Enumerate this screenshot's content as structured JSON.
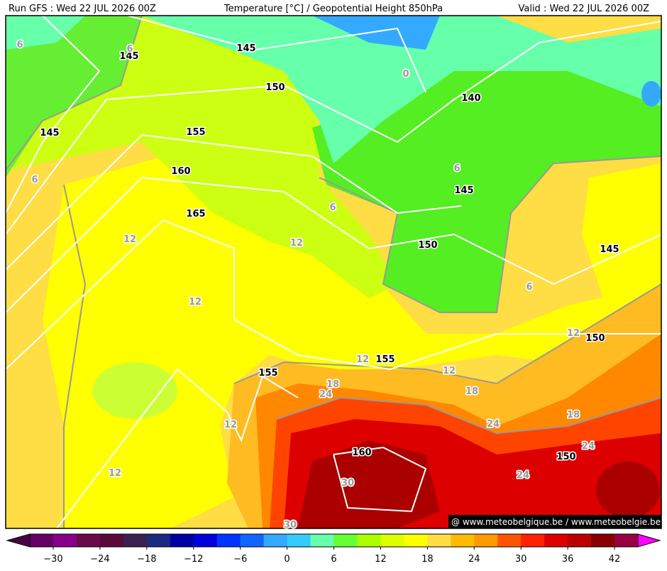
{
  "header": {
    "run": "Run GFS : Wed 22 JUL 2026 00Z",
    "title": "Temperature [°C] / Geopotential Height 850hPa",
    "valid": "Valid : Wed 22 JUL 2026 00Z"
  },
  "height_labels": [
    "145",
    "145",
    "150",
    "145",
    "155",
    "160",
    "165",
    "140",
    "145",
    "150",
    "145",
    "150",
    "155",
    "155",
    "160",
    "150"
  ],
  "temperature_labels": [
    "6",
    "6",
    "0",
    "6",
    "6",
    "6",
    "12",
    "12",
    "12",
    "6",
    "12",
    "12",
    "12",
    "12",
    "12",
    "18",
    "24",
    "18",
    "18",
    "24",
    "24",
    "24",
    "30",
    "30"
  ],
  "watermark": "@ www.meteobelgique.be / www.meteobelgie.be",
  "colorbar": {
    "labels": [
      "−30",
      "−24",
      "−18",
      "−12",
      "−6",
      "0",
      "6",
      "12",
      "18",
      "24",
      "30",
      "36",
      "42"
    ],
    "colors": [
      "#660066",
      "#880088",
      "#6a0a4a",
      "#5a0a3a",
      "#3a2050",
      "#1a2a80",
      "#0000a0",
      "#0000dd",
      "#0033ff",
      "#1166ff",
      "#33aaff",
      "#33ccff",
      "#66ffaa",
      "#66ff33",
      "#aaff00",
      "#ddff00",
      "#ffff00",
      "#ffdd44",
      "#ffbb00",
      "#ff9900",
      "#ff5500",
      "#ff2200",
      "#dd0000",
      "#bb0000",
      "#880000",
      "#990044"
    ],
    "low_color": "#4b0040",
    "high_color": "#ff00ff"
  }
}
